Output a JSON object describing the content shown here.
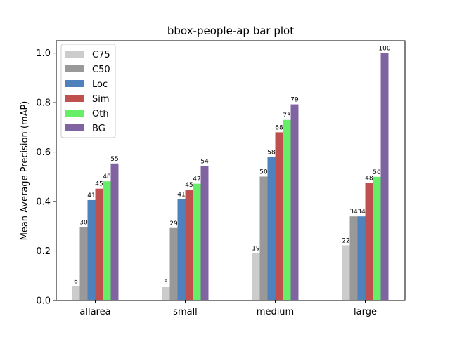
{
  "chart_data": {
    "type": "bar",
    "title": "bbox-people-ap bar plot",
    "xlabel": "",
    "ylabel": "Mean Average Precision (mAP)",
    "ylim": [
      0,
      1.05
    ],
    "yticks": [
      "0.0",
      "0.2",
      "0.4",
      "0.6",
      "0.8",
      "1.0"
    ],
    "categories": [
      "allarea",
      "small",
      "medium",
      "large"
    ],
    "series": [
      {
        "name": "C75",
        "color": "#cccccc",
        "values": [
          0.058,
          0.054,
          0.192,
          0.223
        ],
        "labels": [
          "6",
          "5",
          "19",
          "22"
        ]
      },
      {
        "name": "C50",
        "color": "#999999",
        "values": [
          0.296,
          0.293,
          0.501,
          0.34
        ],
        "labels": [
          "30",
          "29",
          "50",
          "34"
        ]
      },
      {
        "name": "Loc",
        "color": "#4f81bd",
        "values": [
          0.406,
          0.41,
          0.58,
          0.34
        ],
        "labels": [
          "41",
          "41",
          "58",
          "34"
        ]
      },
      {
        "name": "Sim",
        "color": "#c0504d",
        "values": [
          0.452,
          0.448,
          0.68,
          0.476
        ],
        "labels": [
          "45",
          "45",
          "68",
          "48"
        ]
      },
      {
        "name": "Oth",
        "color": "#66ee66",
        "values": [
          0.482,
          0.472,
          0.73,
          0.5
        ],
        "labels": [
          "48",
          "47",
          "73",
          "50"
        ]
      },
      {
        "name": "BG",
        "color": "#8064a2",
        "values": [
          0.554,
          0.543,
          0.793,
          1.0
        ],
        "labels": [
          "55",
          "54",
          "79",
          "100"
        ]
      }
    ],
    "grid": false,
    "legend_position": "top-left"
  }
}
